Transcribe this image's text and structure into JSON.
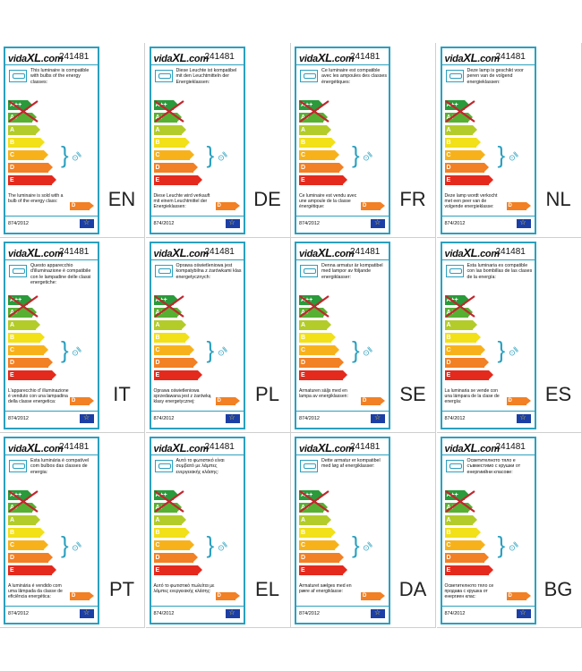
{
  "brand": "vidaXL.com",
  "brand_parts": {
    "pre": "vida",
    "xl": "XL",
    "post": ".com"
  },
  "article_number": "241481",
  "regulation": "874/2012",
  "energy_classes": [
    "A++",
    "A+",
    "A",
    "B",
    "C",
    "D",
    "E"
  ],
  "energy_colors": [
    "#2a9a3a",
    "#57b032",
    "#b3cc2a",
    "#f2e018",
    "#f7b21b",
    "#f28024",
    "#e42a1d"
  ],
  "luminaire_sold_class": "D",
  "labels": [
    {
      "lang": "EN",
      "compatible": "This luminaire is compatible with bulbs of the energy classes:",
      "sold": "The luminaire is sold with a bulb of the energy class:"
    },
    {
      "lang": "DE",
      "compatible": "Diese Leuchte ist kompatibel mit den Leuchtmitteln der Energieklassen:",
      "sold": "Diese Leuchte wird verkauft mit einem Leuchtmittel der Energieklassen:"
    },
    {
      "lang": "FR",
      "compatible": "Ce luminaire est compatible avec les ampoules des classes énergétiques:",
      "sold": "Ce luminaire est vendu avec une ampoule de la classe énergétique:"
    },
    {
      "lang": "NL",
      "compatible": "Deze lamp is geschikt voor peren van de volgend energieklassen:",
      "sold": "Deze lamp wordt verkocht met een peer van de volgende energieklasse:"
    },
    {
      "lang": "IT",
      "compatible": "Questo apparecchio d'illuminazione è compatibile con le lampadine delle classi energetiche:",
      "sold": "L'apparecchio d' illuminazione è venduto con una lampadina della classe energetica:"
    },
    {
      "lang": "PL",
      "compatible": "Oprawa oświetleniowa jest kompatybilna z żarówkami klas energetycznych:",
      "sold": "Oprawa oświetleniowa sprzedawana jest z żarówką klasy energetycznej:"
    },
    {
      "lang": "SE",
      "compatible": "Denna armatur är kompatibel med lampor av följande energiklasser:",
      "sold": "Armaturen säljs med en lampa av energiklassen:"
    },
    {
      "lang": "ES",
      "compatible": "Esta luminaria es compatible con las bombillas de las clases de la energía:",
      "sold": "La luminaria se vende con una lámpara de la clase de energía:"
    },
    {
      "lang": "PT",
      "compatible": "Esta luminária é compatível com bulbos das classes de energia:",
      "sold": "A luminária é vendido com uma lâmpada da classe de eficiência energética:"
    },
    {
      "lang": "EL",
      "compatible": "Αυτό το φωτιστικό είναι συμβατό με λάμπες ενεργειακής κλάσης:",
      "sold": "Αυτό το φωτιστικό πωλείται με λάμπες ενεργειακής κλάσης:"
    },
    {
      "lang": "DA",
      "compatible": "Dette armatur er kompatibel med løg af energiklasser:",
      "sold": "Armaturet sælges med en pære af energiklasse:"
    },
    {
      "lang": "BG",
      "compatible": "Осветителното тяло е съвместимо с крушки от енергиийни класове:",
      "sold": "Осветителното тяло се продава с крушка от енергиен клас:"
    }
  ]
}
